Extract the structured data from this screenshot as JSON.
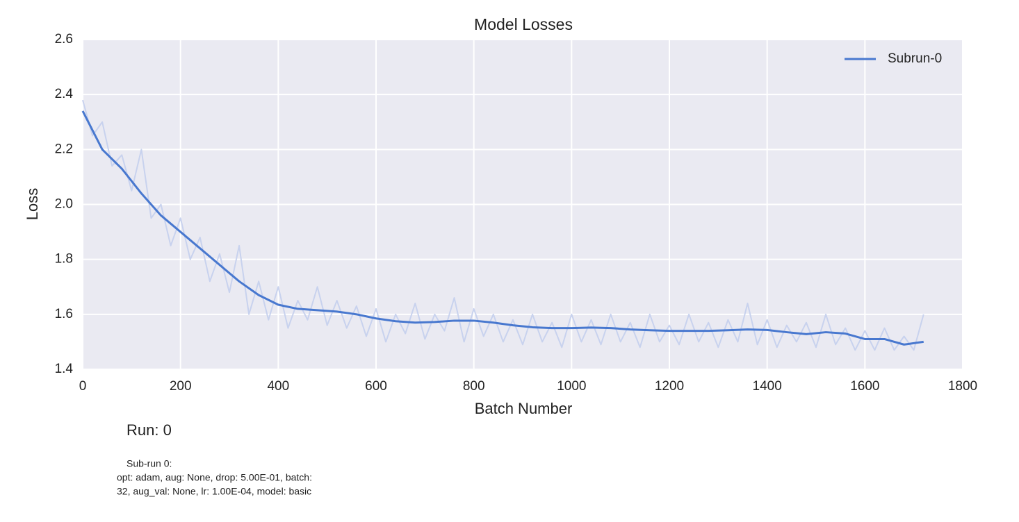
{
  "chart_data": {
    "type": "line",
    "title": "Model Losses",
    "xlabel": "Batch Number",
    "ylabel": "Loss",
    "xlim": [
      0,
      1800
    ],
    "ylim": [
      1.4,
      2.6
    ],
    "xticks": [
      0,
      200,
      400,
      600,
      800,
      1000,
      1200,
      1400,
      1600,
      1800
    ],
    "yticks": [
      1.4,
      1.6,
      1.8,
      {
        "value": 2,
        "label": "2.0"
      },
      2.2,
      2.4,
      2.6
    ],
    "grid": true,
    "legend": "upper right",
    "background": "#eaeaf2",
    "series": [
      {
        "color": "#c8d2ee",
        "x": [
          0,
          20,
          40,
          60,
          80,
          100,
          120,
          140,
          160,
          180,
          200,
          220,
          240,
          260,
          280,
          300,
          320,
          340,
          360,
          380,
          400,
          420,
          440,
          460,
          480,
          500,
          520,
          540,
          560,
          580,
          600,
          620,
          640,
          660,
          680,
          700,
          720,
          740,
          760,
          780,
          800,
          820,
          840,
          860,
          880,
          900,
          920,
          940,
          960,
          980,
          1000,
          1020,
          1040,
          1060,
          1080,
          1100,
          1120,
          1140,
          1160,
          1180,
          1200,
          1220,
          1240,
          1260,
          1280,
          1300,
          1320,
          1340,
          1360,
          1380,
          1400,
          1420,
          1440,
          1460,
          1480,
          1500,
          1520,
          1540,
          1560,
          1580,
          1600,
          1620,
          1640,
          1660,
          1680,
          1700,
          1720
        ],
        "values": [
          2.38,
          2.25,
          2.3,
          2.14,
          2.18,
          2.05,
          2.2,
          1.95,
          2.0,
          1.85,
          1.95,
          1.8,
          1.88,
          1.72,
          1.82,
          1.68,
          1.85,
          1.6,
          1.72,
          1.58,
          1.7,
          1.55,
          1.65,
          1.58,
          1.7,
          1.56,
          1.65,
          1.55,
          1.63,
          1.52,
          1.62,
          1.5,
          1.6,
          1.53,
          1.64,
          1.51,
          1.6,
          1.54,
          1.66,
          1.5,
          1.62,
          1.52,
          1.6,
          1.5,
          1.58,
          1.49,
          1.6,
          1.5,
          1.57,
          1.48,
          1.6,
          1.5,
          1.58,
          1.49,
          1.6,
          1.5,
          1.57,
          1.48,
          1.6,
          1.5,
          1.56,
          1.49,
          1.6,
          1.5,
          1.57,
          1.48,
          1.58,
          1.5,
          1.64,
          1.49,
          1.58,
          1.48,
          1.56,
          1.5,
          1.57,
          1.48,
          1.6,
          1.49,
          1.55,
          1.47,
          1.54,
          1.47,
          1.55,
          1.47,
          1.52,
          1.47,
          1.6
        ]
      },
      {
        "name": "Subrun-0",
        "color": "#4878cf",
        "x": [
          0,
          40,
          80,
          120,
          160,
          200,
          240,
          280,
          320,
          360,
          400,
          440,
          480,
          520,
          560,
          600,
          640,
          680,
          720,
          760,
          800,
          840,
          880,
          920,
          960,
          1000,
          1040,
          1080,
          1120,
          1160,
          1200,
          1240,
          1280,
          1320,
          1360,
          1400,
          1440,
          1480,
          1520,
          1560,
          1600,
          1640,
          1680,
          1720
        ],
        "values": [
          2.34,
          2.2,
          2.13,
          2.04,
          1.96,
          1.9,
          1.84,
          1.78,
          1.72,
          1.67,
          1.635,
          1.62,
          1.615,
          1.61,
          1.6,
          1.585,
          1.575,
          1.57,
          1.572,
          1.577,
          1.577,
          1.57,
          1.56,
          1.553,
          1.55,
          1.55,
          1.552,
          1.55,
          1.545,
          1.542,
          1.54,
          1.54,
          1.54,
          1.542,
          1.545,
          1.543,
          1.535,
          1.528,
          1.535,
          1.53,
          1.51,
          1.51,
          1.49,
          1.5
        ]
      }
    ],
    "annotations": {
      "run": "Run: 0",
      "details": [
        "Sub-run 0:",
        "opt: adam, aug: None, drop: 5.00E-01, batch:",
        "32, aug_val: None, lr: 1.00E-04, model: basic"
      ]
    }
  }
}
